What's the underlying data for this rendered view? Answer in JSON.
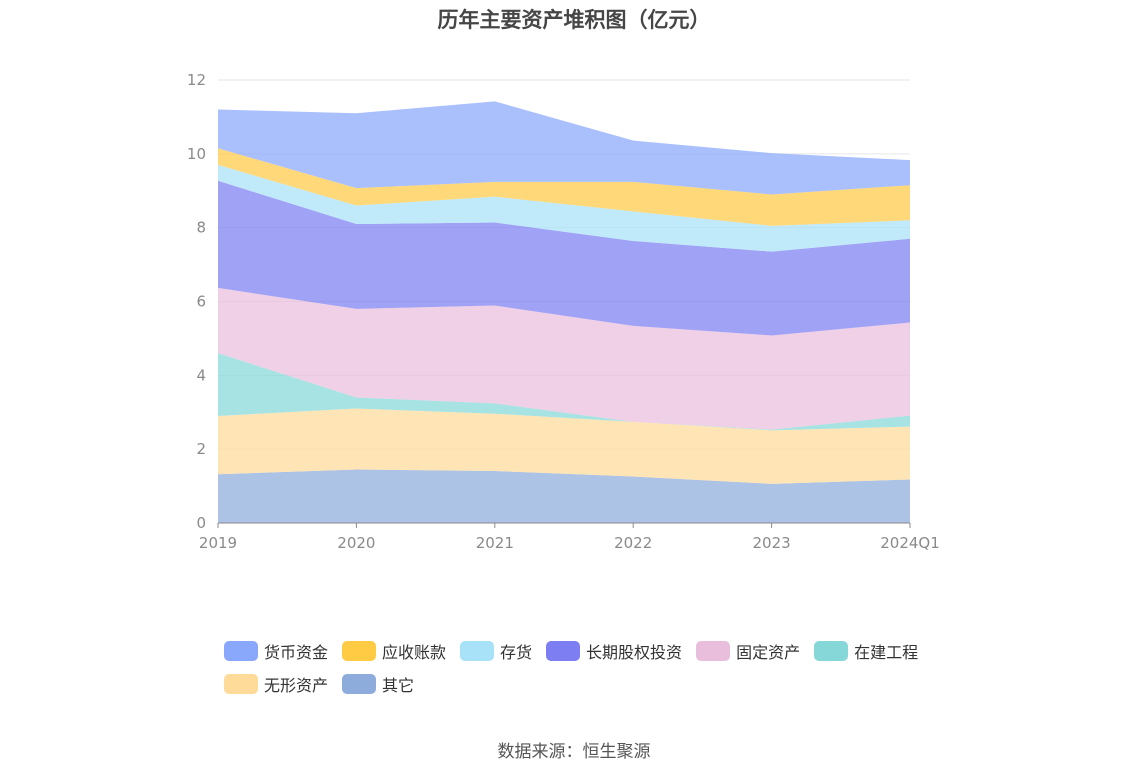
{
  "title": "历年主要资产堆积图（亿元）",
  "source": "数据来源：恒生聚源",
  "chart_data": {
    "type": "area",
    "stacked": true,
    "categories": [
      "2019",
      "2020",
      "2021",
      "2022",
      "2023",
      "2024Q1"
    ],
    "ylim": [
      0,
      12
    ],
    "yticks": [
      0,
      2,
      4,
      6,
      8,
      10,
      12
    ],
    "grid": true,
    "legend_position": "bottom",
    "series": [
      {
        "name": "其它",
        "color": "#8eacdb",
        "values": [
          1.32,
          1.45,
          1.41,
          1.26,
          1.06,
          1.18
        ]
      },
      {
        "name": "无形资产",
        "color": "#ffdb9a",
        "values": [
          1.58,
          1.65,
          1.55,
          1.48,
          1.45,
          1.43
        ]
      },
      {
        "name": "在建工程",
        "color": "#86d8d8",
        "values": [
          1.7,
          0.3,
          0.28,
          0.0,
          0.02,
          0.3
        ]
      },
      {
        "name": "固定资产",
        "color": "#e9bedc",
        "values": [
          1.77,
          2.4,
          2.65,
          2.6,
          2.55,
          2.52
        ]
      },
      {
        "name": "长期股权投资",
        "color": "#7c7ef2",
        "values": [
          2.9,
          2.3,
          2.25,
          2.3,
          2.27,
          2.27
        ]
      },
      {
        "name": "存货",
        "color": "#a8e2f8",
        "values": [
          0.43,
          0.5,
          0.7,
          0.8,
          0.7,
          0.5
        ]
      },
      {
        "name": "应收账款",
        "color": "#ffcb45",
        "values": [
          0.45,
          0.47,
          0.4,
          0.8,
          0.85,
          0.95
        ]
      },
      {
        "name": "货币资金",
        "color": "#89a7fb",
        "values": [
          1.05,
          2.03,
          2.18,
          1.12,
          1.12,
          0.68
        ]
      }
    ],
    "legend_order": [
      "货币资金",
      "应收账款",
      "存货",
      "长期股权投资",
      "固定资产",
      "在建工程",
      "无形资产",
      "其它"
    ]
  }
}
